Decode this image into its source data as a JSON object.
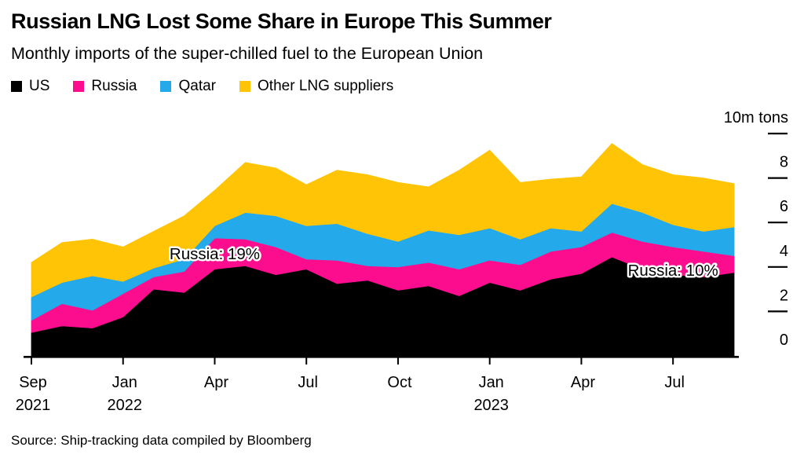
{
  "header": {
    "title": "Russian LNG Lost Some Share in Europe This Summer",
    "subtitle": "Monthly imports of the super-chilled fuel to the European Union"
  },
  "legend": {
    "items": [
      {
        "label": "US",
        "color": "#000000"
      },
      {
        "label": "Russia",
        "color": "#FB0D8E"
      },
      {
        "label": "Qatar",
        "color": "#24A9EA"
      },
      {
        "label": "Other LNG suppliers",
        "color": "#FFC406"
      }
    ]
  },
  "chart_data": {
    "type": "area",
    "stacked": true,
    "grid": false,
    "legend_position": "top-left",
    "ylim": [
      0,
      10
    ],
    "unit_label": "10m tons",
    "y_ticks": [
      {
        "value": 0,
        "label": "0",
        "dash": false
      },
      {
        "value": 2,
        "label": "2",
        "dash": true
      },
      {
        "value": 4,
        "label": "4",
        "dash": true
      },
      {
        "value": 6,
        "label": "6",
        "dash": true
      },
      {
        "value": 8,
        "label": "8",
        "dash": true
      },
      {
        "value": 10,
        "label": "10m tons",
        "dash": true
      }
    ],
    "x_ticks": [
      {
        "index": 0,
        "line1": "Sep",
        "line2": "2021"
      },
      {
        "index": 3,
        "line1": "Jan",
        "line2": "2022"
      },
      {
        "index": 6,
        "line1": "Apr",
        "line2": ""
      },
      {
        "index": 9,
        "line1": "Jul",
        "line2": ""
      },
      {
        "index": 12,
        "line1": "Oct",
        "line2": ""
      },
      {
        "index": 15,
        "line1": "Jan",
        "line2": "2023"
      },
      {
        "index": 18,
        "line1": "Apr",
        "line2": ""
      },
      {
        "index": 21,
        "line1": "Jul",
        "line2": ""
      }
    ],
    "series": [
      {
        "name": "US",
        "color": "#000000",
        "values": [
          1.05,
          1.35,
          1.25,
          1.75,
          3.0,
          2.85,
          3.9,
          4.05,
          3.65,
          3.9,
          3.25,
          3.4,
          2.95,
          3.15,
          2.7,
          3.3,
          2.95,
          3.45,
          3.7,
          4.45,
          3.9,
          3.65,
          3.55,
          3.75
        ]
      },
      {
        "name": "Russia",
        "color": "#FB0D8E",
        "values": [
          0.55,
          1.0,
          0.8,
          1.05,
          0.55,
          0.95,
          1.4,
          1.2,
          1.25,
          0.45,
          1.05,
          0.65,
          1.05,
          1.05,
          1.2,
          1.0,
          1.15,
          1.25,
          1.2,
          1.1,
          1.25,
          1.25,
          1.15,
          0.75
        ]
      },
      {
        "name": "Qatar",
        "color": "#24A9EA",
        "values": [
          1.05,
          0.95,
          1.55,
          0.55,
          0.4,
          0.55,
          0.55,
          1.2,
          1.4,
          1.5,
          1.65,
          1.45,
          1.15,
          1.45,
          1.55,
          1.45,
          1.15,
          1.05,
          0.7,
          1.3,
          1.3,
          1.0,
          0.9,
          1.3
        ]
      },
      {
        "name": "Other LNG suppliers",
        "color": "#FFC406",
        "values": [
          1.55,
          1.8,
          1.65,
          1.55,
          1.65,
          1.95,
          1.6,
          2.25,
          2.15,
          1.85,
          2.4,
          2.65,
          2.65,
          1.95,
          2.9,
          3.5,
          2.55,
          2.2,
          2.45,
          2.7,
          2.15,
          2.25,
          2.4,
          1.95
        ]
      }
    ],
    "annotations": [
      {
        "text": "Russia: 19%",
        "x_index": 6,
        "y_value": 4.6
      },
      {
        "text": "Russia: 10%",
        "x_index": 21,
        "y_value": 3.85
      }
    ]
  },
  "source": "Source: Ship-tracking data compiled by Bloomberg"
}
